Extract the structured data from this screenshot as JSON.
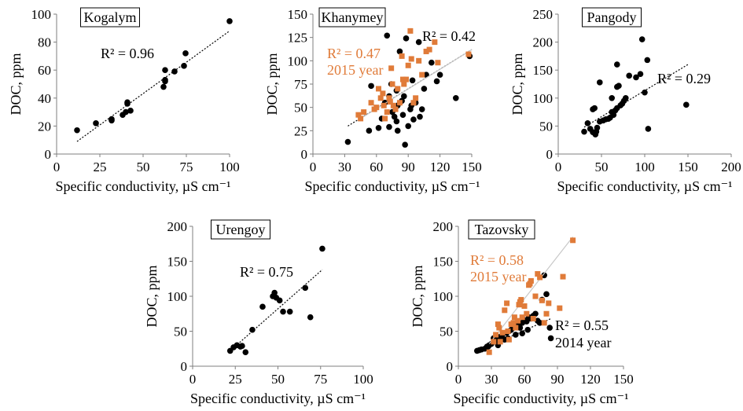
{
  "chart_data": [
    {
      "type": "scatter",
      "title": "Kogalym",
      "xlabel": "Specific conductivity, µS cm⁻¹",
      "ylabel": "DOC, ppm",
      "xlim": [
        0,
        110
      ],
      "ylim": [
        0,
        100
      ],
      "xticks": [
        "0",
        "25",
        "50",
        "75",
        "100"
      ],
      "yticks": [
        "0",
        "20",
        "40",
        "60",
        "80",
        "100"
      ],
      "grid": false,
      "series": [
        {
          "color": "#000000",
          "marker": "circle",
          "points": [
            [
              13,
              17
            ],
            [
              25,
              22
            ],
            [
              35,
              25
            ],
            [
              35,
              24
            ],
            [
              42,
              28
            ],
            [
              44,
              30
            ],
            [
              45,
              36
            ],
            [
              45,
              37
            ],
            [
              47,
              31
            ],
            [
              68,
              48
            ],
            [
              69,
              53
            ],
            [
              69,
              60
            ],
            [
              69,
              52
            ],
            [
              75,
              59
            ],
            [
              81,
              63
            ],
            [
              82,
              72
            ],
            [
              110,
              95
            ]
          ],
          "trendline": [
            [
              13,
              9
            ],
            [
              110,
              88
            ]
          ],
          "r2_label": "R² = 0.96"
        }
      ]
    },
    {
      "type": "scatter",
      "title": "Khanymey",
      "xlabel": "Specific conductivity, µS cm⁻¹",
      "ylabel": "DOC, ppm",
      "xlim": [
        0,
        150
      ],
      "ylim": [
        0,
        150
      ],
      "xticks": [
        "0",
        "30",
        "60",
        "90",
        "120",
        "150"
      ],
      "yticks": [
        "0",
        "25",
        "50",
        "75",
        "100",
        "125",
        "150"
      ],
      "grid": false,
      "series": [
        {
          "color": "#000000",
          "marker": "circle",
          "points": [
            [
              33,
              13
            ],
            [
              53,
              25
            ],
            [
              55,
              73
            ],
            [
              62,
              28
            ],
            [
              65,
              38
            ],
            [
              68,
              55
            ],
            [
              70,
              127
            ],
            [
              72,
              62
            ],
            [
              72,
              29
            ],
            [
              74,
              75
            ],
            [
              75,
              45
            ],
            [
              77,
              40
            ],
            [
              79,
              35
            ],
            [
              79,
              68
            ],
            [
              80,
              52
            ],
            [
              80,
              25
            ],
            [
              82,
              110
            ],
            [
              84,
              57
            ],
            [
              85,
              42
            ],
            [
              86,
              62
            ],
            [
              87,
              10
            ],
            [
              88,
              124
            ],
            [
              90,
              30
            ],
            [
              92,
              48
            ],
            [
              93,
              52
            ],
            [
              94,
              79
            ],
            [
              95,
              37
            ],
            [
              97,
              55
            ],
            [
              100,
              120
            ],
            [
              101,
              40
            ],
            [
              103,
              48
            ],
            [
              105,
              70
            ],
            [
              107,
              85
            ],
            [
              112,
              98
            ],
            [
              117,
              78
            ],
            [
              120,
              85
            ],
            [
              135,
              60
            ],
            [
              148,
              105
            ]
          ],
          "trendline": [
            [
              33,
              30
            ],
            [
              150,
              112
            ]
          ],
          "r2_label": "R² = 0.42"
        },
        {
          "name": "2015 year",
          "color": "#e07b39",
          "marker": "square",
          "points": [
            [
              43,
              42
            ],
            [
              45,
              38
            ],
            [
              48,
              45
            ],
            [
              55,
              55
            ],
            [
              58,
              48
            ],
            [
              60,
              50
            ],
            [
              62,
              70
            ],
            [
              64,
              60
            ],
            [
              66,
              65
            ],
            [
              67,
              52
            ],
            [
              68,
              38
            ],
            [
              70,
              45
            ],
            [
              72,
              60
            ],
            [
              73,
              56
            ],
            [
              74,
              92
            ],
            [
              75,
              75
            ],
            [
              76,
              52
            ],
            [
              78,
              48
            ],
            [
              80,
              70
            ],
            [
              82,
              55
            ],
            [
              84,
              105
            ],
            [
              85,
              80
            ],
            [
              86,
              75
            ],
            [
              88,
              80
            ],
            [
              90,
              95
            ],
            [
              92,
              132
            ],
            [
              93,
              102
            ],
            [
              95,
              55
            ],
            [
              97,
              60
            ],
            [
              100,
              100
            ],
            [
              103,
              85
            ],
            [
              107,
              110
            ],
            [
              110,
              112
            ],
            [
              115,
              120
            ],
            [
              118,
              98
            ],
            [
              147,
              107
            ]
          ],
          "trendline": [
            [
              45,
              38
            ],
            [
              150,
              112
            ]
          ],
          "r2_label": "R² = 0.47"
        }
      ]
    },
    {
      "type": "scatter",
      "title": "Pangody",
      "xlabel": "Specific conductivity, µS cm⁻¹",
      "ylabel": "DOC, ppm",
      "xlim": [
        0,
        200
      ],
      "ylim": [
        0,
        250
      ],
      "xticks": [
        "0",
        "50",
        "100",
        "150",
        "200"
      ],
      "yticks": [
        "0",
        "50",
        "100",
        "150",
        "200",
        "250"
      ],
      "grid": false,
      "series": [
        {
          "color": "#000000",
          "marker": "circle",
          "points": [
            [
              30,
              40
            ],
            [
              34,
              55
            ],
            [
              37,
              45
            ],
            [
              40,
              39
            ],
            [
              40,
              80
            ],
            [
              42,
              82
            ],
            [
              43,
              35
            ],
            [
              44,
              40
            ],
            [
              45,
              47
            ],
            [
              48,
              58
            ],
            [
              52,
              60
            ],
            [
              55,
              62
            ],
            [
              58,
              63
            ],
            [
              60,
              65
            ],
            [
              62,
              75
            ],
            [
              62,
              100
            ],
            [
              64,
              70
            ],
            [
              66,
              78
            ],
            [
              68,
              82
            ],
            [
              68,
              160
            ],
            [
              70,
              122
            ],
            [
              72,
              87
            ],
            [
              74,
              90
            ],
            [
              76,
              95
            ],
            [
              78,
              100
            ],
            [
              82,
              140
            ],
            [
              90,
              137
            ],
            [
              95,
              143
            ],
            [
              97,
              205
            ],
            [
              100,
              110
            ],
            [
              103,
              168
            ],
            [
              104,
              45
            ],
            [
              148,
              88
            ],
            [
              48,
              128
            ],
            [
              68,
              120
            ]
          ],
          "trendline": [
            [
              30,
              48
            ],
            [
              150,
              160
            ]
          ],
          "r2_label": "R² = 0.29"
        }
      ]
    },
    {
      "type": "scatter",
      "title": "Urengoy",
      "xlabel": "Specific conductivity, µS cm⁻¹",
      "ylabel": "DOC, ppm",
      "xlim": [
        0,
        100
      ],
      "ylim": [
        0,
        200
      ],
      "xticks": [
        "0",
        "25",
        "50",
        "75",
        "100"
      ],
      "yticks": [
        "0",
        "50",
        "100",
        "150",
        "200"
      ],
      "grid": false,
      "series": [
        {
          "color": "#000000",
          "marker": "circle",
          "points": [
            [
              22,
              22
            ],
            [
              24,
              27
            ],
            [
              26,
              30
            ],
            [
              28,
              28
            ],
            [
              29,
              29
            ],
            [
              31,
              20
            ],
            [
              35,
              52
            ],
            [
              41,
              85
            ],
            [
              47,
              100
            ],
            [
              48,
              105
            ],
            [
              49,
              98
            ],
            [
              51,
              94
            ],
            [
              53,
              78
            ],
            [
              57,
              78
            ],
            [
              66,
              112
            ],
            [
              69,
              70
            ],
            [
              76,
              168
            ]
          ],
          "trendline": [
            [
              22,
              22
            ],
            [
              76,
              138
            ]
          ],
          "r2_label": "R² = 0.75"
        }
      ]
    },
    {
      "type": "scatter",
      "title": "Tazovsky",
      "xlabel": "Specific conductivity, µS cm⁻¹",
      "ylabel": "DOC, ppm",
      "xlim": [
        0,
        150
      ],
      "ylim": [
        0,
        200
      ],
      "xticks": [
        "0",
        "30",
        "60",
        "90",
        "120",
        "150"
      ],
      "yticks": [
        "0",
        "50",
        "100",
        "150",
        "200"
      ],
      "grid": false,
      "series": [
        {
          "name": "2014 year",
          "color": "#000000",
          "marker": "circle",
          "points": [
            [
              17,
              22
            ],
            [
              19,
              23
            ],
            [
              21,
              24
            ],
            [
              24,
              25
            ],
            [
              26,
              28
            ],
            [
              28,
              30
            ],
            [
              30,
              32
            ],
            [
              32,
              40
            ],
            [
              34,
              35
            ],
            [
              36,
              30
            ],
            [
              38,
              42
            ],
            [
              40,
              45
            ],
            [
              42,
              38
            ],
            [
              44,
              48
            ],
            [
              46,
              50
            ],
            [
              48,
              52
            ],
            [
              50,
              55
            ],
            [
              52,
              58
            ],
            [
              54,
              60
            ],
            [
              56,
              55
            ],
            [
              58,
              62
            ],
            [
              60,
              66
            ],
            [
              62,
              64
            ],
            [
              64,
              70
            ],
            [
              66,
              68
            ],
            [
              68,
              72
            ],
            [
              70,
              75
            ],
            [
              72,
              65
            ],
            [
              74,
              62
            ],
            [
              76,
              95
            ],
            [
              78,
              130
            ],
            [
              80,
              103
            ],
            [
              83,
              55
            ],
            [
              84,
              40
            ],
            [
              27,
              28
            ],
            [
              35,
              37
            ],
            [
              45,
              40
            ],
            [
              52,
              45
            ],
            [
              58,
              47
            ],
            [
              63,
              52
            ]
          ],
          "trendline": [
            [
              17,
              21
            ],
            [
              84,
              68
            ]
          ],
          "r2_label": "R² = 0.55"
        },
        {
          "name": "2015 year",
          "color": "#e07b39",
          "marker": "square",
          "points": [
            [
              28,
              20
            ],
            [
              32,
              35
            ],
            [
              34,
              45
            ],
            [
              36,
              60
            ],
            [
              37,
              55
            ],
            [
              38,
              35
            ],
            [
              40,
              48
            ],
            [
              42,
              80
            ],
            [
              44,
              90
            ],
            [
              45,
              50
            ],
            [
              46,
              38
            ],
            [
              48,
              60
            ],
            [
              50,
              62
            ],
            [
              51,
              70
            ],
            [
              52,
              55
            ],
            [
              54,
              65
            ],
            [
              55,
              88
            ],
            [
              56,
              92
            ],
            [
              57,
              95
            ],
            [
              58,
              70
            ],
            [
              60,
              86
            ],
            [
              62,
              75
            ],
            [
              64,
              116
            ],
            [
              65,
              118
            ],
            [
              66,
              122
            ],
            [
              68,
              68
            ],
            [
              70,
              100
            ],
            [
              72,
              132
            ],
            [
              74,
              127
            ],
            [
              76,
              94
            ],
            [
              78,
              62
            ],
            [
              80,
              75
            ],
            [
              82,
              90
            ],
            [
              92,
              83
            ],
            [
              95,
              128
            ],
            [
              104,
              180
            ]
          ],
          "trendline": [
            [
              28,
              32
            ],
            [
              104,
              185
            ]
          ],
          "r2_label": "R² = 0.58"
        }
      ]
    }
  ]
}
